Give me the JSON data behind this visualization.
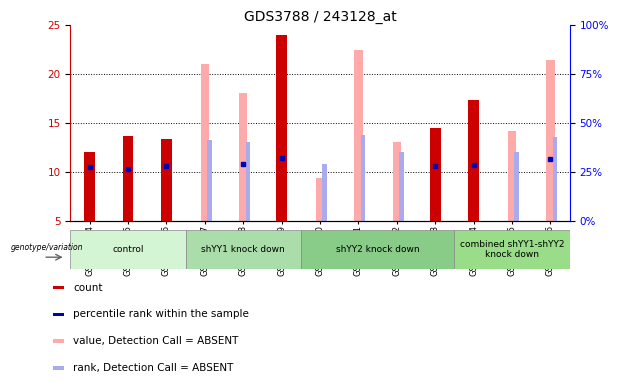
{
  "title": "GDS3788 / 243128_at",
  "samples": [
    "GSM373614",
    "GSM373615",
    "GSM373616",
    "GSM373617",
    "GSM373618",
    "GSM373619",
    "GSM373620",
    "GSM373621",
    "GSM373622",
    "GSM373623",
    "GSM373624",
    "GSM373625",
    "GSM373626"
  ],
  "red_count": [
    12.0,
    13.7,
    13.3,
    null,
    null,
    24.0,
    null,
    null,
    null,
    14.5,
    17.3,
    null,
    null
  ],
  "blue_rank_left": [
    10.5,
    10.3,
    10.6,
    null,
    10.8,
    11.4,
    null,
    null,
    null,
    10.6,
    10.7,
    null,
    11.3
  ],
  "pink_value_right": [
    null,
    null,
    null,
    80,
    65,
    null,
    22,
    87,
    40,
    null,
    null,
    46,
    82
  ],
  "lightblue_rank_right": [
    null,
    null,
    null,
    41,
    40,
    null,
    29,
    44,
    35,
    null,
    null,
    35,
    43
  ],
  "ylim_left": [
    5,
    25
  ],
  "ylim_right": [
    0,
    100
  ],
  "yticks_left": [
    5,
    10,
    15,
    20,
    25
  ],
  "yticks_right": [
    0,
    25,
    50,
    75,
    100
  ],
  "groups": [
    {
      "label": "control",
      "start": 0,
      "end": 3,
      "color": "#d4f5d4"
    },
    {
      "label": "shYY1 knock down",
      "start": 3,
      "end": 6,
      "color": "#aaddaa"
    },
    {
      "label": "shYY2 knock down",
      "start": 6,
      "end": 10,
      "color": "#88cc88"
    },
    {
      "label": "combined shYY1-shYY2\nknock down",
      "start": 10,
      "end": 13,
      "color": "#99dd88"
    }
  ],
  "colors": {
    "red": "#cc0000",
    "blue": "#0000bb",
    "pink": "#ffaaaa",
    "lightblue": "#aaaaee"
  }
}
